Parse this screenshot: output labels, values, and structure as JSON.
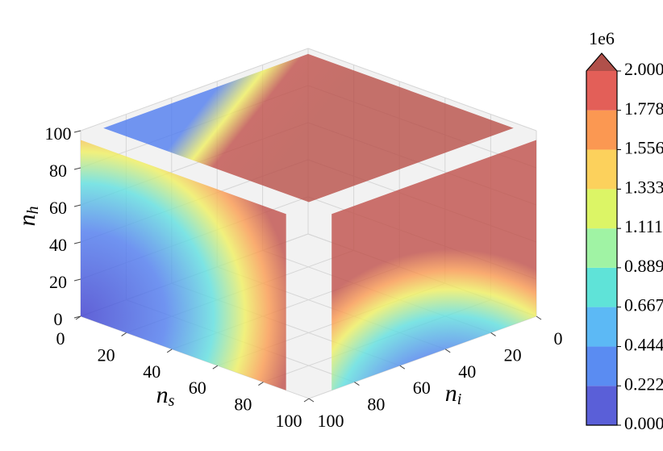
{
  "chart_data": {
    "type": "contour3d",
    "xlabel": "n",
    "xlabel_sub": "s",
    "ylabel": "n",
    "ylabel_sub": "i",
    "zlabel": "n",
    "zlabel_sub": "h",
    "xlim": [
      0,
      100
    ],
    "ylim": [
      0,
      100
    ],
    "zlim": [
      0,
      100
    ],
    "xticks": [
      0,
      20,
      40,
      60,
      80,
      100
    ],
    "yticks": [
      0,
      20,
      40,
      60,
      80,
      100
    ],
    "zticks": [
      0,
      20,
      40,
      60,
      80,
      100
    ],
    "grid": true,
    "colorbar": {
      "offset_label": "1e6",
      "clim": [
        0,
        2
      ],
      "ticks": [
        {
          "value": 0,
          "label": "0.000"
        },
        {
          "value": 0.222,
          "label": "0.222"
        },
        {
          "value": 0.444,
          "label": "0.444"
        },
        {
          "value": 0.667,
          "label": "0.667"
        },
        {
          "value": 0.889,
          "label": "0.889"
        },
        {
          "value": 1.111,
          "label": "1.111"
        },
        {
          "value": 1.333,
          "label": "1.333"
        },
        {
          "value": 1.556,
          "label": "1.556"
        },
        {
          "value": 1.778,
          "label": "1.778"
        },
        {
          "value": 2,
          "label": "2.000"
        }
      ],
      "colors": [
        "#5a5fd8",
        "#5a8cf2",
        "#5cb9f5",
        "#5fe3d8",
        "#a0f3a4",
        "#dcf566",
        "#fcd15c",
        "#fb9852",
        "#e35f58"
      ],
      "extend_color": "#b0504a"
    }
  }
}
